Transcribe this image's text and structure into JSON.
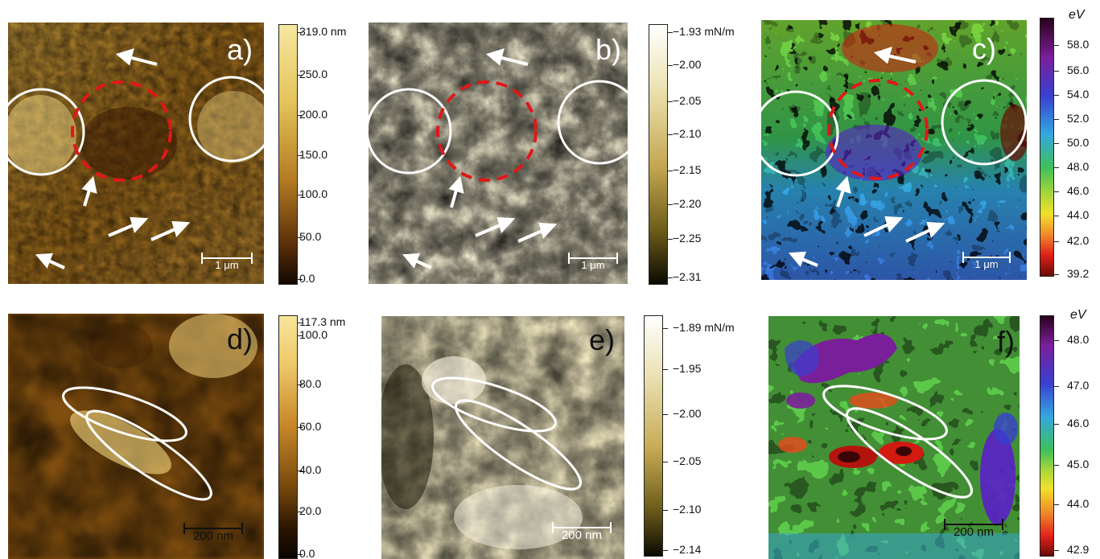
{
  "panels": {
    "a": {
      "label": "a)",
      "scale": "1 μm"
    },
    "b": {
      "label": "b)",
      "scale": "1 μm"
    },
    "c": {
      "label": "c)",
      "scale": "1 μm"
    },
    "d": {
      "label": "d)",
      "scale": "200 nm"
    },
    "e": {
      "label": "e)",
      "scale": "200 nm"
    },
    "f": {
      "label": "f)",
      "scale": "200 nm"
    }
  },
  "colorbars": {
    "a": {
      "ticks": [
        "319.0 nm",
        "250.0",
        "200.0",
        "150.0",
        "100.0",
        "50.0",
        "0.0"
      ]
    },
    "b": {
      "ticks": [
        "−1.93 mN/m",
        "−2.00",
        "−2.05",
        "−2.10",
        "−2.15",
        "−2.20",
        "−2.25",
        "−2.31"
      ]
    },
    "c": {
      "unit": "eV",
      "ticks": [
        "58.0",
        "56.0",
        "54.0",
        "52.0",
        "50.0",
        "48.0",
        "46.0",
        "44.0",
        "42.0",
        "39.2"
      ]
    },
    "d": {
      "ticks": [
        "117.3 nm",
        "100.0",
        "80.0",
        "60.0",
        "40.0",
        "20.0",
        "0.0"
      ]
    },
    "e": {
      "ticks": [
        "−1.89 mN/m",
        "−1.95",
        "−2.00",
        "−2.05",
        "−2.10",
        "−2.14"
      ]
    },
    "f": {
      "unit": "eV",
      "ticks": [
        "48.0",
        "47.0",
        "46.0",
        "45.0",
        "44.0",
        "42.9"
      ]
    }
  },
  "colors": {
    "afm_dark": "#2a1400",
    "afm_light": "#f6e8a0",
    "friction_dark": "#1e1a08",
    "friction_light": "#fbf7e6",
    "work_function_scale": [
      "#2a001a",
      "#7a1f9a",
      "#3a3fd0",
      "#33a8e0",
      "#3fbf5a",
      "#a6d63a",
      "#f2e02a",
      "#f08a2a",
      "#e0201a",
      "#6a0a05"
    ],
    "marker_white": "#ffffff",
    "marker_red": "#e01818"
  }
}
